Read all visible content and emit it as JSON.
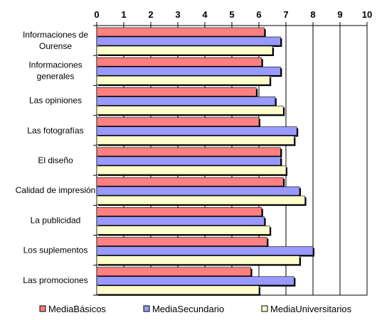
{
  "chart_data": {
    "type": "bar",
    "orientation": "horizontal",
    "title": "",
    "xlabel": "",
    "ylabel": "",
    "xlim": [
      0,
      10
    ],
    "xticks": [
      "0",
      "1",
      "2",
      "3",
      "4",
      "5",
      "6",
      "7",
      "8",
      "9",
      "10"
    ],
    "x_axis_position": "top",
    "grid": "vertical",
    "legend_position": "bottom",
    "categories": [
      [
        "Informaciones de",
        "Ourense"
      ],
      [
        "Informaciones",
        "generales"
      ],
      [
        "Las opiniones"
      ],
      [
        "Las fotografías"
      ],
      [
        "El diseño"
      ],
      [
        "Calidad de impresión"
      ],
      [
        "La publicidad"
      ],
      [
        "Los suplementos"
      ],
      [
        "Las promociones"
      ]
    ],
    "series": [
      {
        "name": "MediaBásicos",
        "color": "#ff8080",
        "values": [
          6.2,
          6.1,
          5.9,
          6.0,
          6.8,
          6.9,
          6.1,
          6.3,
          5.7
        ]
      },
      {
        "name": "MediaSecundario",
        "color": "#9999ff",
        "values": [
          6.8,
          6.8,
          6.6,
          7.4,
          6.8,
          7.5,
          6.2,
          8.0,
          7.3
        ]
      },
      {
        "name": "MediaUniversitarios",
        "color": "#ffffcc",
        "values": [
          6.5,
          6.4,
          6.9,
          7.3,
          7.0,
          7.7,
          6.4,
          7.5,
          6.0
        ]
      }
    ]
  }
}
